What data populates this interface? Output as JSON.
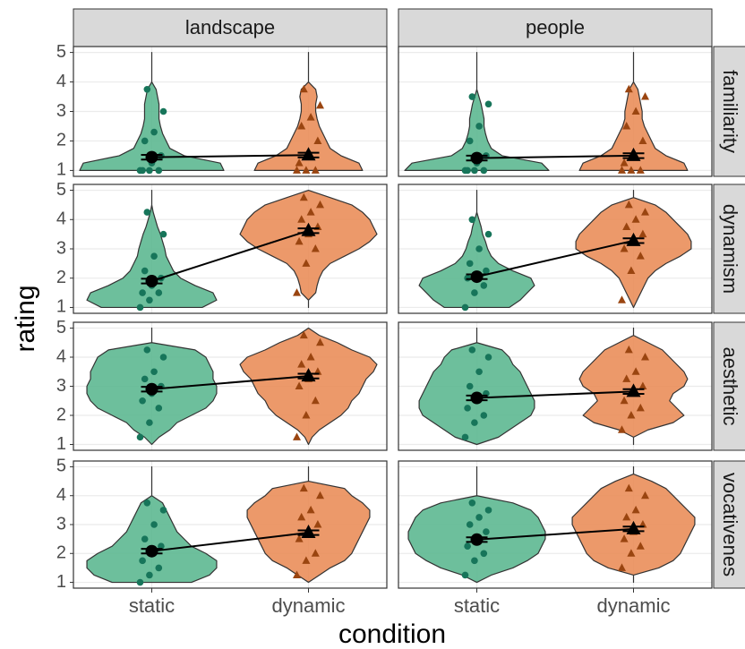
{
  "chart_data": {
    "type": "violin",
    "x_label": "condition",
    "y_label": "rating",
    "columns": [
      "landscape",
      "people"
    ],
    "rows": [
      "familiarity",
      "dynamism",
      "aesthetic",
      "vocativenes"
    ],
    "categories": [
      "static",
      "dynamic"
    ],
    "colors": [
      "#5db891",
      "#ea8e5a"
    ],
    "point_colors": [
      "#17755a",
      "#9a4510"
    ],
    "shapes": [
      "circle",
      "triangle"
    ],
    "ylim": [
      0.8,
      5.2
    ],
    "yticks": [
      1,
      2,
      3,
      4,
      5
    ],
    "grid": true,
    "density_y": [
      1,
      1.25,
      1.5,
      1.75,
      2,
      2.25,
      2.5,
      2.75,
      3,
      3.25,
      3.5,
      3.75,
      4,
      4.25,
      4.5,
      4.75,
      5
    ],
    "panels": [
      [
        [
          {
            "mean": 1.45,
            "se": 0.08,
            "density": [
              1.0,
              0.95,
              0.45,
              0.25,
              0.2,
              0.15,
              0.12,
              0.1,
              0.1,
              0.1,
              0.08,
              0.06,
              0,
              0,
              0,
              0,
              0
            ],
            "points": [
              1,
              1,
              1,
              1,
              1.25,
              1.5,
              2,
              2.3,
              3,
              3.75
            ]
          },
          {
            "mean": 1.52,
            "se": 0.08,
            "density": [
              0.75,
              0.7,
              0.45,
              0.3,
              0.25,
              0.2,
              0.15,
              0.12,
              0.1,
              0.1,
              0.12,
              0.1,
              0,
              0,
              0,
              0,
              0
            ],
            "points": [
              1,
              1,
              1,
              1.25,
              1.5,
              2,
              2.5,
              2.8,
              3.2,
              3.75
            ]
          }
        ],
        [
          {
            "mean": 1.42,
            "se": 0.08,
            "density": [
              1.0,
              0.9,
              0.35,
              0.2,
              0.15,
              0.12,
              0.1,
              0.1,
              0.08,
              0.06,
              0.03,
              0,
              0,
              0,
              0,
              0,
              0
            ],
            "points": [
              1,
              1,
              1,
              1,
              1.25,
              1.5,
              2,
              2.5,
              3.25,
              3.5
            ]
          },
          {
            "mean": 1.5,
            "se": 0.08,
            "density": [
              0.75,
              0.7,
              0.45,
              0.3,
              0.25,
              0.2,
              0.15,
              0.12,
              0.12,
              0.1,
              0.08,
              0.06,
              0,
              0,
              0,
              0,
              0
            ],
            "points": [
              1,
              1,
              1,
              1.25,
              1.5,
              2,
              2.5,
              3,
              3.5,
              3.75
            ]
          }
        ]
      ],
      [
        [
          {
            "mean": 1.9,
            "se": 0.08,
            "density": [
              0.7,
              0.9,
              0.85,
              0.6,
              0.4,
              0.3,
              0.25,
              0.2,
              0.18,
              0.15,
              0.12,
              0.08,
              0.05,
              0.02,
              0,
              0,
              0
            ],
            "points": [
              1,
              1.25,
              1.5,
              1.5,
              1.75,
              2,
              2.25,
              2.75,
              3.5,
              4.25
            ]
          },
          {
            "mean": 3.62,
            "se": 0.08,
            "density": [
              0,
              0,
              0.1,
              0.12,
              0.15,
              0.2,
              0.3,
              0.5,
              0.7,
              0.85,
              0.95,
              0.9,
              0.85,
              0.75,
              0.6,
              0.3,
              0
            ],
            "points": [
              1.5,
              2.5,
              3,
              3.25,
              3.5,
              3.75,
              4,
              4.25,
              4.5,
              4.75
            ]
          }
        ],
        [
          {
            "mean": 2.05,
            "se": 0.08,
            "density": [
              0.45,
              0.6,
              0.7,
              0.8,
              0.75,
              0.5,
              0.3,
              0.2,
              0.15,
              0.12,
              0.08,
              0.06,
              0.03,
              0,
              0,
              0,
              0
            ],
            "points": [
              1,
              1.5,
              1.75,
              2,
              2,
              2.25,
              2.5,
              3,
              3.5,
              4
            ]
          },
          {
            "mean": 3.28,
            "se": 0.08,
            "density": [
              0,
              0.05,
              0.1,
              0.15,
              0.2,
              0.3,
              0.45,
              0.65,
              0.8,
              0.8,
              0.75,
              0.65,
              0.55,
              0.45,
              0.3,
              0,
              0
            ],
            "points": [
              1.25,
              2.25,
              2.75,
              3,
              3.25,
              3.5,
              3.75,
              4,
              4.25,
              4.5
            ]
          }
        ]
      ],
      [
        [
          {
            "mean": 2.9,
            "se": 0.08,
            "density": [
              0,
              0.1,
              0.25,
              0.35,
              0.55,
              0.75,
              0.85,
              0.9,
              0.9,
              0.85,
              0.85,
              0.8,
              0.75,
              0.6,
              0,
              0,
              0
            ],
            "points": [
              1.25,
              1.75,
              2.25,
              2.5,
              2.75,
              3,
              3.25,
              3.5,
              4,
              4.25
            ]
          },
          {
            "mean": 3.35,
            "se": 0.08,
            "density": [
              0,
              0.05,
              0.15,
              0.3,
              0.45,
              0.55,
              0.6,
              0.7,
              0.75,
              0.8,
              0.9,
              0.95,
              0.85,
              0.6,
              0.4,
              0.15,
              0
            ],
            "points": [
              1.25,
              2,
              2.5,
              3,
              3.25,
              3.5,
              3.75,
              4,
              4.5,
              4.75
            ]
          }
        ],
        [
          {
            "mean": 2.6,
            "se": 0.08,
            "density": [
              0,
              0.3,
              0.45,
              0.6,
              0.75,
              0.8,
              0.8,
              0.75,
              0.7,
              0.65,
              0.6,
              0.5,
              0.45,
              0.35,
              0,
              0,
              0
            ],
            "points": [
              1.25,
              1.75,
              2,
              2.25,
              2.5,
              2.75,
              3,
              3.5,
              4,
              4.25
            ]
          },
          {
            "mean": 2.82,
            "se": 0.08,
            "density": [
              0,
              0,
              0.2,
              0.55,
              0.7,
              0.6,
              0.5,
              0.55,
              0.7,
              0.75,
              0.7,
              0.6,
              0.5,
              0.4,
              0.2,
              0,
              0
            ],
            "points": [
              1.5,
              2,
              2.25,
              2.5,
              2.75,
              3,
              3.25,
              3.5,
              4,
              4.25
            ]
          }
        ]
      ],
      [
        [
          {
            "mean": 2.08,
            "se": 0.08,
            "density": [
              0.55,
              0.8,
              0.9,
              0.9,
              0.75,
              0.55,
              0.45,
              0.35,
              0.3,
              0.25,
              0.2,
              0.15,
              0,
              0,
              0,
              0,
              0
            ],
            "points": [
              1,
              1.25,
              1.5,
              1.75,
              2,
              2.25,
              2.5,
              3,
              3.5,
              3.75
            ]
          },
          {
            "mean": 2.72,
            "se": 0.08,
            "density": [
              0,
              0.15,
              0.3,
              0.5,
              0.6,
              0.65,
              0.7,
              0.75,
              0.8,
              0.85,
              0.85,
              0.75,
              0.6,
              0.5,
              0,
              0,
              0
            ],
            "points": [
              1.25,
              1.75,
              2,
              2.5,
              2.75,
              3,
              3.25,
              3.5,
              4,
              4.25
            ]
          }
        ],
        [
          {
            "mean": 2.48,
            "se": 0.08,
            "density": [
              0,
              0.2,
              0.5,
              0.7,
              0.85,
              0.9,
              0.95,
              0.95,
              0.9,
              0.85,
              0.75,
              0.5,
              0,
              0,
              0,
              0,
              0
            ],
            "points": [
              1.25,
              1.75,
              2,
              2.25,
              2.5,
              2.75,
              3,
              3.25,
              3.5,
              3.75
            ]
          },
          {
            "mean": 2.85,
            "se": 0.08,
            "density": [
              0,
              0,
              0.35,
              0.55,
              0.65,
              0.7,
              0.75,
              0.8,
              0.85,
              0.85,
              0.75,
              0.65,
              0.55,
              0.45,
              0.25,
              0,
              0
            ],
            "points": [
              1.5,
              2,
              2.25,
              2.5,
              2.75,
              3,
              3.25,
              3.5,
              4,
              4.25
            ]
          }
        ]
      ]
    ]
  }
}
